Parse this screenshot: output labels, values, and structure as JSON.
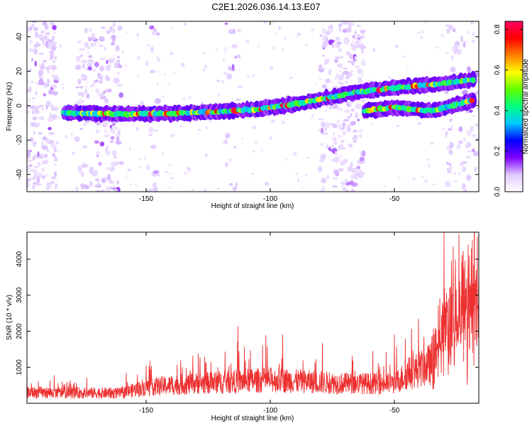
{
  "title": "C2E1.2026.036.14.13.E07",
  "chart_data": [
    {
      "type": "heatmap",
      "xlabel": "Height of straight line (km)",
      "ylabel": "Frequency (Hz)",
      "xlim": [
        -198,
        -16
      ],
      "ylim": [
        -50,
        49
      ],
      "xticks": [
        -150,
        -100,
        -50
      ],
      "yticks": [
        -40,
        -20,
        0,
        20,
        40
      ],
      "colorbar": {
        "label": "Normalized spectral amplitude",
        "range": [
          0,
          0.84
        ],
        "ticks": [
          0.0,
          0.2,
          0.4,
          0.6,
          0.8
        ],
        "tick_labels": [
          "0.0",
          "0.2",
          "0.4",
          "0.6",
          "0.8"
        ],
        "colors": [
          "#ffffff",
          "#e0c8ff",
          "#8000ff",
          "#0000ff",
          "#00c8ff",
          "#00ff80",
          "#60ff00",
          "#ffff00",
          "#ff8000",
          "#ff0000",
          "#ff0060"
        ]
      },
      "ridges": [
        {
          "name": "main",
          "x": [
            -183,
            -160,
            -140,
            -120,
            -105,
            -90,
            -75,
            -65
          ],
          "y": [
            -4,
            -5,
            -4.5,
            -3.5,
            -2,
            1,
            5,
            8
          ]
        },
        {
          "name": "upper",
          "x": [
            -65,
            -45,
            -30,
            -18
          ],
          "y": [
            8,
            11,
            13,
            15
          ]
        },
        {
          "name": "lower",
          "x": [
            -62,
            -50,
            -35,
            -18
          ],
          "y": [
            -3,
            -1,
            -3,
            3
          ]
        }
      ]
    },
    {
      "type": "line",
      "series": [
        {
          "name": "SNR",
          "color": "#ee3030"
        }
      ],
      "xlabel": "Height of straight line (km)",
      "ylabel": "SNR (10 * v/v)",
      "xlim": [
        -198,
        -16
      ],
      "ylim": [
        0,
        4750
      ],
      "xticks": [
        -150,
        -100,
        -50
      ],
      "yticks": [
        1000,
        2000,
        3000,
        4000
      ],
      "baseline": [
        [
          -198,
          300
        ],
        [
          -160,
          280
        ],
        [
          -150,
          450
        ],
        [
          -130,
          550
        ],
        [
          -100,
          650
        ],
        [
          -70,
          550
        ],
        [
          -50,
          550
        ],
        [
          -45,
          800
        ],
        [
          -35,
          1100
        ],
        [
          -28,
          1900
        ],
        [
          -20,
          2400
        ],
        [
          -16,
          2600
        ]
      ],
      "peaks": [
        [
          -187,
          780
        ],
        [
          -150,
          1050
        ],
        [
          -129,
          1380
        ],
        [
          -126,
          1140
        ],
        [
          -113,
          2130
        ],
        [
          -108,
          1470
        ],
        [
          -95,
          1910
        ],
        [
          -79,
          1670
        ],
        [
          -67,
          1310
        ],
        [
          -50,
          1910
        ],
        [
          -30,
          4750
        ],
        [
          -24,
          4700
        ],
        [
          -19,
          4300
        ],
        [
          -17,
          3700
        ]
      ]
    }
  ]
}
